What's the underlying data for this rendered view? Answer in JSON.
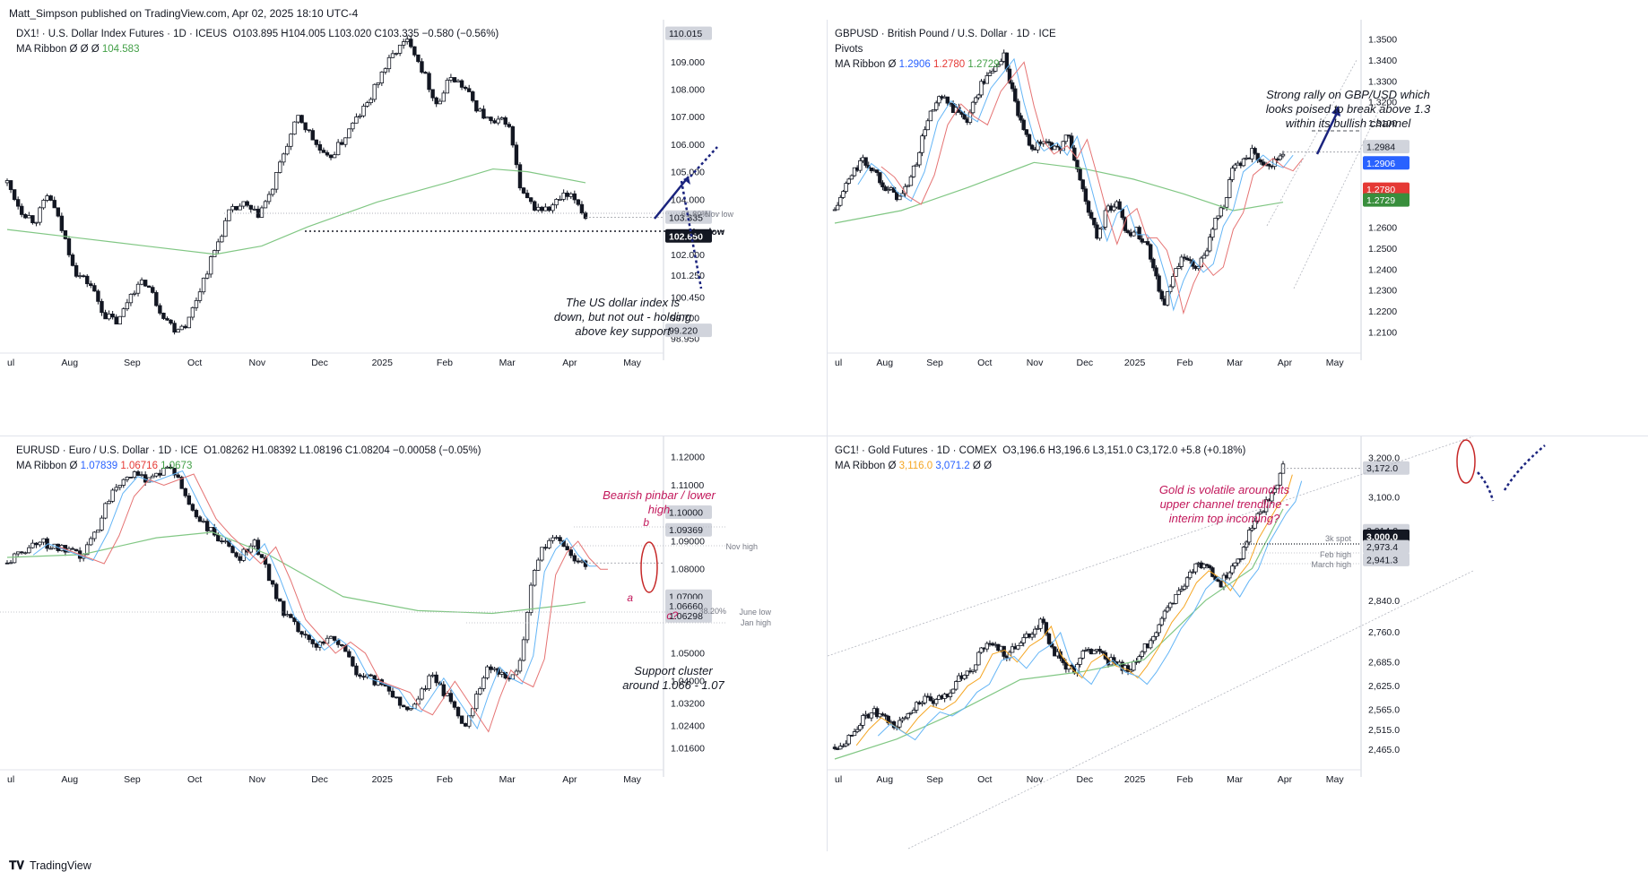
{
  "header": {
    "publisher": "Matt_Simpson published on TradingView.com, Apr 02, 2025 18:10 UTC-4"
  },
  "footer": {
    "brand": "TradingView"
  },
  "colors": {
    "blue": "#2962ff",
    "red": "#e57373",
    "green": "#66bb6a",
    "orange": "#f5a623",
    "annot_red": "#c2185b",
    "arrow": "#1a237e"
  },
  "chart_data": [
    {
      "id": "dx",
      "type": "candlestick",
      "title": "DX1! · U.S. Dollar Index Futures · 1D · ICEUS",
      "ohlc_text": "O103.895  H104.005  L103.020  C103.335  −0.580 (−0.56%)",
      "ribbon_label": "MA Ribbon  Ø  Ø  Ø",
      "ribbon_value": "104.583",
      "x_labels": [
        "ul",
        "Aug",
        "Sep",
        "Oct",
        "Nov",
        "Dec",
        "2025",
        "Feb",
        "Mar",
        "Apr",
        "May"
      ],
      "y_ticks": [
        "110.015",
        "109.000",
        "108.000",
        "107.000",
        "106.000",
        "105.000",
        "104.000",
        "103.335",
        "103.285",
        "102.650",
        "102.000",
        "101.250",
        "100.450",
        "99.700",
        "99.220",
        "98.950"
      ],
      "price_tags": [
        {
          "value": "110.015",
          "style": "gray"
        },
        {
          "value": "103.335",
          "style": "gray"
        },
        {
          "value": "102.650",
          "style": "black"
        },
        {
          "value": "99.220",
          "style": "gray"
        }
      ],
      "ylim": [
        98.8,
        110.2
      ],
      "path": [
        [
          0,
          104.6
        ],
        [
          6,
          103.6
        ],
        [
          12,
          103.2
        ],
        [
          18,
          104.2
        ],
        [
          24,
          102.8
        ],
        [
          30,
          101.3
        ],
        [
          36,
          100.9
        ],
        [
          42,
          99.8
        ],
        [
          48,
          99.5
        ],
        [
          54,
          100.7
        ],
        [
          60,
          101.0
        ],
        [
          66,
          100.0
        ],
        [
          72,
          99.3
        ],
        [
          78,
          99.5
        ],
        [
          84,
          100.9
        ],
        [
          90,
          102.2
        ],
        [
          96,
          103.5
        ],
        [
          102,
          103.8
        ],
        [
          108,
          103.4
        ],
        [
          114,
          104.2
        ],
        [
          120,
          105.8
        ],
        [
          126,
          107.0
        ],
        [
          132,
          106.2
        ],
        [
          138,
          105.4
        ],
        [
          144,
          106.0
        ],
        [
          150,
          106.8
        ],
        [
          156,
          107.5
        ],
        [
          162,
          108.6
        ],
        [
          168,
          109.4
        ],
        [
          174,
          109.8
        ],
        [
          180,
          108.6
        ],
        [
          186,
          107.4
        ],
        [
          192,
          108.5
        ],
        [
          198,
          108.0
        ],
        [
          204,
          107.2
        ],
        [
          210,
          106.7
        ],
        [
          216,
          106.9
        ],
        [
          219,
          105.8
        ],
        [
          222,
          104.2
        ],
        [
          228,
          103.7
        ],
        [
          234,
          103.6
        ],
        [
          240,
          104.1
        ],
        [
          246,
          104.0
        ],
        [
          250,
          103.34
        ]
      ],
      "ma": [
        [
          0,
          102.9
        ],
        [
          30,
          102.6
        ],
        [
          60,
          102.3
        ],
        [
          90,
          102.0
        ],
        [
          110,
          102.3
        ],
        [
          130,
          103.0
        ],
        [
          160,
          103.9
        ],
        [
          190,
          104.6
        ],
        [
          210,
          105.1
        ],
        [
          225,
          105.0
        ],
        [
          250,
          104.6
        ]
      ],
      "ma_label": "green",
      "annotations": [
        {
          "text": "The US dollar index is down, but not out - holding above key support",
          "color": "dark"
        }
      ],
      "level_labels": [
        "Nov low",
        "Nov low",
        "61.80%"
      ]
    },
    {
      "id": "gbp",
      "type": "candlestick",
      "title": "GBPUSD · British Pound / U.S. Dollar · 1D · ICE",
      "subtitle": "Pivots",
      "ribbon_label": "MA Ribbon  Ø",
      "ribbon_values": [
        "1.2906",
        "1.2780",
        "1.2729"
      ],
      "x_labels": [
        "ul",
        "Aug",
        "Sep",
        "Oct",
        "Nov",
        "Dec",
        "2025",
        "Feb",
        "Mar",
        "Apr",
        "May"
      ],
      "y_ticks": [
        "1.3500",
        "1.3400",
        "1.3300",
        "1.3200",
        "1.3100",
        "1.2984",
        "1.2906",
        "1.2780",
        "1.2729",
        "1.2600",
        "1.2500",
        "1.2400",
        "1.2300",
        "1.2200",
        "1.2100"
      ],
      "price_tags": [
        {
          "value": "1.2984",
          "style": "gray"
        },
        {
          "value": "1.2906",
          "style": "blue"
        },
        {
          "value": "1.2780",
          "style": "red"
        },
        {
          "value": "1.2729",
          "style": "green"
        }
      ],
      "ylim": [
        1.205,
        1.355
      ],
      "path": [
        [
          0,
          1.268
        ],
        [
          8,
          1.282
        ],
        [
          16,
          1.292
        ],
        [
          24,
          1.287
        ],
        [
          32,
          1.278
        ],
        [
          40,
          1.274
        ],
        [
          48,
          1.288
        ],
        [
          56,
          1.312
        ],
        [
          64,
          1.322
        ],
        [
          72,
          1.316
        ],
        [
          80,
          1.312
        ],
        [
          88,
          1.328
        ],
        [
          96,
          1.336
        ],
        [
          102,
          1.342
        ],
        [
          108,
          1.321
        ],
        [
          114,
          1.304
        ],
        [
          120,
          1.298
        ],
        [
          128,
          1.302
        ],
        [
          134,
          1.296
        ],
        [
          140,
          1.305
        ],
        [
          146,
          1.288
        ],
        [
          152,
          1.27
        ],
        [
          158,
          1.255
        ],
        [
          164,
          1.268
        ],
        [
          170,
          1.272
        ],
        [
          176,
          1.258
        ],
        [
          182,
          1.258
        ],
        [
          188,
          1.252
        ],
        [
          194,
          1.236
        ],
        [
          198,
          1.222
        ],
        [
          204,
          1.236
        ],
        [
          210,
          1.246
        ],
        [
          216,
          1.24
        ],
        [
          222,
          1.244
        ],
        [
          228,
          1.262
        ],
        [
          234,
          1.27
        ],
        [
          240,
          1.288
        ],
        [
          246,
          1.292
        ],
        [
          252,
          1.296
        ],
        [
          258,
          1.292
        ],
        [
          264,
          1.29
        ],
        [
          270,
          1.296
        ]
      ],
      "ma": [
        [
          0,
          1.262
        ],
        [
          40,
          1.268
        ],
        [
          80,
          1.279
        ],
        [
          120,
          1.291
        ],
        [
          150,
          1.288
        ],
        [
          180,
          1.283
        ],
        [
          210,
          1.276
        ],
        [
          240,
          1.268
        ],
        [
          270,
          1.272
        ]
      ],
      "annotations": [
        {
          "text": "Strong rally on GBP/USD which looks poised to break above 1.3 within its bullish channel",
          "color": "dark"
        }
      ]
    },
    {
      "id": "eur",
      "type": "candlestick",
      "title": "EURUSD · Euro / U.S. Dollar · 1D · ICE",
      "ohlc_text": "O1.08262  H1.08392  L1.08196  C1.08204  −0.00058 (−0.05%)",
      "ribbon_label": "MA Ribbon",
      "ribbon_values": [
        "1.07839",
        "1.06716",
        "1.0673"
      ],
      "x_labels": [
        "ul",
        "Aug",
        "Sep",
        "Oct",
        "Nov",
        "Dec",
        "2025",
        "Feb",
        "Mar",
        "Apr",
        "May"
      ],
      "y_ticks": [
        "1.12000",
        "1.11000",
        "1.10000",
        "1.09369",
        "1.09000",
        "1.08000",
        "1.07000",
        "1.06660",
        "1.06298",
        "1.05000",
        "1.04000",
        "1.03200",
        "1.02400",
        "1.01600"
      ],
      "price_tags": [
        {
          "value": "1.10000",
          "style": "gray"
        },
        {
          "value": "1.09369",
          "style": "gray"
        },
        {
          "value": "1.07000",
          "style": "gray"
        },
        {
          "value": "1.06660",
          "style": "gray"
        },
        {
          "value": "1.06298",
          "style": "gray"
        }
      ],
      "ylim": [
        1.012,
        1.124
      ],
      "path": [
        [
          0,
          1.082
        ],
        [
          8,
          1.086
        ],
        [
          16,
          1.09
        ],
        [
          24,
          1.088
        ],
        [
          32,
          1.086
        ],
        [
          40,
          1.084
        ],
        [
          48,
          1.094
        ],
        [
          56,
          1.108
        ],
        [
          64,
          1.114
        ],
        [
          72,
          1.112
        ],
        [
          80,
          1.114
        ],
        [
          88,
          1.116
        ],
        [
          94,
          1.108
        ],
        [
          100,
          1.1
        ],
        [
          108,
          1.094
        ],
        [
          116,
          1.089
        ],
        [
          124,
          1.084
        ],
        [
          132,
          1.09
        ],
        [
          140,
          1.078
        ],
        [
          148,
          1.064
        ],
        [
          156,
          1.058
        ],
        [
          164,
          1.052
        ],
        [
          172,
          1.056
        ],
        [
          180,
          1.052
        ],
        [
          188,
          1.042
        ],
        [
          196,
          1.04
        ],
        [
          204,
          1.038
        ],
        [
          210,
          1.032
        ],
        [
          216,
          1.03
        ],
        [
          222,
          1.036
        ],
        [
          228,
          1.042
        ],
        [
          234,
          1.036
        ],
        [
          240,
          1.03
        ],
        [
          246,
          1.024
        ],
        [
          252,
          1.036
        ],
        [
          258,
          1.046
        ],
        [
          264,
          1.042
        ],
        [
          270,
          1.04
        ],
        [
          276,
          1.05
        ],
        [
          282,
          1.08
        ],
        [
          288,
          1.088
        ],
        [
          294,
          1.092
        ],
        [
          300,
          1.086
        ],
        [
          306,
          1.082
        ],
        [
          310,
          1.082
        ]
      ],
      "ma": [
        [
          0,
          1.084
        ],
        [
          40,
          1.085
        ],
        [
          80,
          1.091
        ],
        [
          110,
          1.093
        ],
        [
          140,
          1.085
        ],
        [
          180,
          1.07
        ],
        [
          220,
          1.065
        ],
        [
          260,
          1.064
        ],
        [
          300,
          1.067
        ],
        [
          310,
          1.068
        ]
      ],
      "annotations": [
        {
          "text": "Bearish pinbar / lower high",
          "color": "red"
        },
        {
          "text": "Support cluster around 1.066 - 1.07",
          "color": "dark"
        }
      ],
      "level_labels": [
        "Nov high",
        "June low",
        "Jan high",
        "38.20%",
        "a",
        "b",
        "c?"
      ]
    },
    {
      "id": "gold",
      "type": "candlestick",
      "title": "GC1! · Gold Futures · 1D · COMEX",
      "ohlc_text": "O3,196.6  H3,196.6  L3,151.0  C3,172.0  +5.8 (+0.18%)",
      "ribbon_label": "MA Ribbon",
      "ribbon_values": [
        "3,116.0",
        "3,071.2",
        "Ø",
        "Ø"
      ],
      "x_labels": [
        "ul",
        "Aug",
        "Sep",
        "Oct",
        "Nov",
        "Dec",
        "2025",
        "Feb",
        "Mar",
        "Apr",
        "May"
      ],
      "y_ticks": [
        "3,200.0",
        "3,172.0",
        "3,100.0",
        "3,014.0",
        "3,000.0",
        "2,973.4",
        "2,941.3",
        "2,840.0",
        "2,760.0",
        "2,685.0",
        "2,625.0",
        "2,565.0",
        "2,515.0",
        "2,465.0"
      ],
      "price_tags": [
        {
          "value": "3,172.0",
          "style": "gray"
        },
        {
          "value": "3,014.0",
          "style": "gray"
        },
        {
          "value": "3,000.0",
          "style": "black"
        },
        {
          "value": "2,973.4",
          "style": "gray"
        },
        {
          "value": "2,941.3",
          "style": "gray"
        }
      ],
      "ylim": [
        2440,
        3230
      ],
      "path": [
        [
          0,
          2470
        ],
        [
          8,
          2490
        ],
        [
          16,
          2530
        ],
        [
          24,
          2560
        ],
        [
          32,
          2540
        ],
        [
          40,
          2520
        ],
        [
          48,
          2560
        ],
        [
          56,
          2590
        ],
        [
          64,
          2580
        ],
        [
          72,
          2600
        ],
        [
          80,
          2640
        ],
        [
          88,
          2660
        ],
        [
          96,
          2720
        ],
        [
          104,
          2730
        ],
        [
          112,
          2700
        ],
        [
          120,
          2740
        ],
        [
          128,
          2760
        ],
        [
          134,
          2790
        ],
        [
          140,
          2720
        ],
        [
          148,
          2680
        ],
        [
          154,
          2660
        ],
        [
          160,
          2700
        ],
        [
          168,
          2720
        ],
        [
          176,
          2690
        ],
        [
          184,
          2680
        ],
        [
          190,
          2660
        ],
        [
          196,
          2690
        ],
        [
          204,
          2740
        ],
        [
          212,
          2800
        ],
        [
          220,
          2840
        ],
        [
          228,
          2900
        ],
        [
          236,
          2930
        ],
        [
          244,
          2910
        ],
        [
          250,
          2880
        ],
        [
          256,
          2920
        ],
        [
          262,
          2950
        ],
        [
          268,
          3010
        ],
        [
          274,
          3050
        ],
        [
          280,
          3090
        ],
        [
          286,
          3120
        ],
        [
          290,
          3172
        ]
      ],
      "ma": [
        [
          0,
          2440
        ],
        [
          40,
          2490
        ],
        [
          80,
          2560
        ],
        [
          120,
          2640
        ],
        [
          160,
          2660
        ],
        [
          200,
          2690
        ],
        [
          240,
          2840
        ],
        [
          270,
          2920
        ],
        [
          290,
          3070
        ]
      ],
      "annotations": [
        {
          "text": "Gold is volatile around its upper channel trendline - interim top incoming?",
          "color": "red"
        }
      ],
      "level_labels": [
        "3k spot",
        "Feb high",
        "March high"
      ]
    }
  ]
}
